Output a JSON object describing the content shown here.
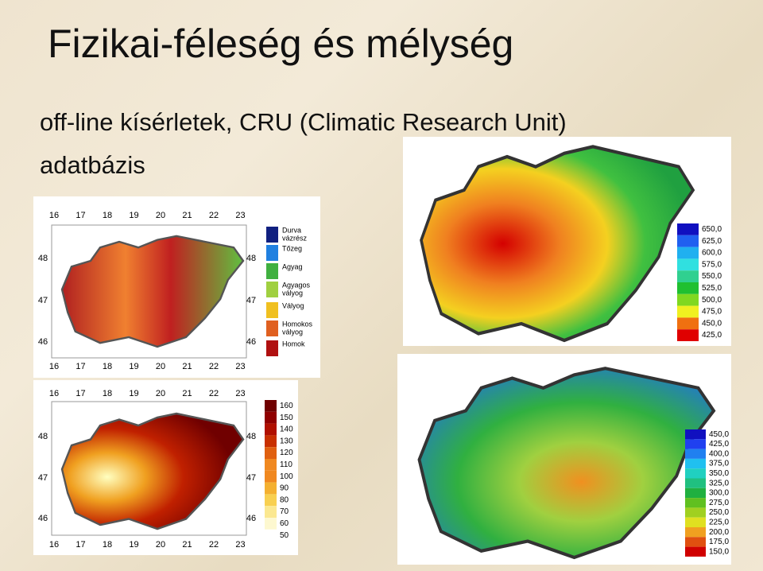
{
  "header": {
    "title": "Fizikai-féleség és mélység",
    "subtitle": "off-line kísérletek, CRU (Climatic Research Unit)",
    "subtitle2": "adatbázis"
  },
  "soil_map": {
    "lon_labels": [
      "16",
      "17",
      "18",
      "19",
      "20",
      "21",
      "22",
      "23"
    ],
    "lat_labels": [
      "48",
      "47",
      "46"
    ],
    "legend": [
      [
        "Durva",
        "vázrész"
      ],
      [
        "Tőzeg"
      ],
      [
        "Agyag"
      ],
      [
        "Agyagos",
        "vályog"
      ],
      [
        "Vályog"
      ],
      [
        "Homokos",
        "vályog"
      ],
      [
        "Homok"
      ]
    ]
  },
  "depth_map": {
    "lon_labels": [
      "16",
      "17",
      "18",
      "19",
      "20",
      "21",
      "22",
      "23"
    ],
    "lat_labels": [
      "48",
      "47",
      "46"
    ],
    "scale": [
      "160",
      "150",
      "140",
      "130",
      "120",
      "110",
      "100",
      "90",
      "80",
      "70",
      "60",
      "50"
    ]
  },
  "map_top_right": {
    "scale": [
      "650,0",
      "625,0",
      "600,0",
      "575,0",
      "550,0",
      "525,0",
      "500,0",
      "475,0",
      "450,0",
      "425,0"
    ]
  },
  "map_bottom_right": {
    "scale": [
      "450,0",
      "425,0",
      "400,0",
      "375,0",
      "350,0",
      "325,0",
      "300,0",
      "275,0",
      "250,0",
      "225,0",
      "200,0",
      "175,0",
      "150,0"
    ]
  }
}
